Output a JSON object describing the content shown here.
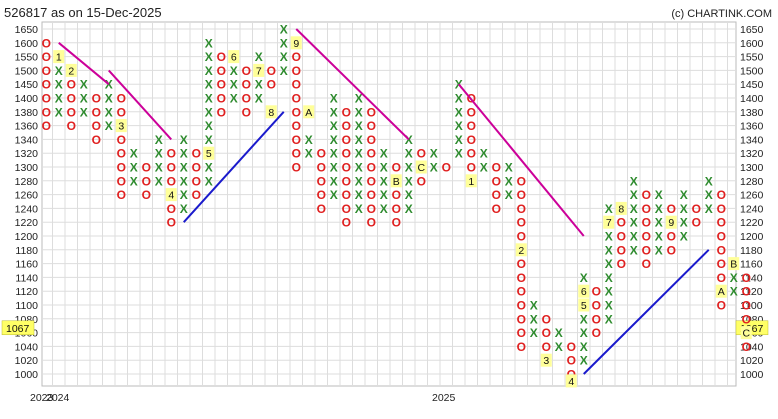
{
  "header": {
    "title": "526817 as on 15-Dec-2025",
    "brand": "(c) CHARTINK.COM"
  },
  "chart_data": {
    "type": "point-and-figure",
    "title": "526817 as on 15-Dec-2025",
    "ylim": [
      1000,
      1650
    ],
    "y_levels": [
      1000,
      1020,
      1040,
      1060,
      1080,
      1100,
      1120,
      1140,
      1160,
      1180,
      1200,
      1220,
      1240,
      1260,
      1280,
      1300,
      1320,
      1340,
      1360,
      1380,
      1400,
      1450,
      1500,
      1550,
      1600,
      1650
    ],
    "x_axis_labels": [
      "2023",
      "2024",
      "2025"
    ],
    "current_price": "1067",
    "grid": true,
    "colors": {
      "x_mark": "#2e8b2e",
      "o_mark": "#e02020",
      "resistance_line": "#cc0099",
      "support_line": "#1a1acc",
      "month_marker_bg": "#ffff99",
      "price_highlight": "#ffff66",
      "grid": "#dddddd"
    },
    "columns": [
      {
        "type": "O",
        "from": 1600,
        "to": 1360
      },
      {
        "type": "X",
        "from": 1380,
        "to": 1550
      },
      {
        "type": "O",
        "from": 1500,
        "to": 1360
      },
      {
        "type": "X",
        "from": 1380,
        "to": 1450
      },
      {
        "type": "O",
        "from": 1400,
        "to": 1340
      },
      {
        "type": "X",
        "from": 1360,
        "to": 1450
      },
      {
        "type": "O",
        "from": 1400,
        "to": 1260
      },
      {
        "type": "X",
        "from": 1280,
        "to": 1320
      },
      {
        "type": "O",
        "from": 1300,
        "to": 1260
      },
      {
        "type": "X",
        "from": 1280,
        "to": 1340
      },
      {
        "type": "O",
        "from": 1320,
        "to": 1220
      },
      {
        "type": "X",
        "from": 1240,
        "to": 1340
      },
      {
        "type": "O",
        "from": 1320,
        "to": 1260
      },
      {
        "type": "X",
        "from": 1280,
        "to": 1600
      },
      {
        "type": "O",
        "from": 1550,
        "to": 1380
      },
      {
        "type": "X",
        "from": 1400,
        "to": 1550
      },
      {
        "type": "O",
        "from": 1500,
        "to": 1380
      },
      {
        "type": "X",
        "from": 1400,
        "to": 1550
      },
      {
        "type": "O",
        "from": 1500,
        "to": 1450
      },
      {
        "type": "X",
        "from": 1500,
        "to": 1650
      },
      {
        "type": "O",
        "from": 1600,
        "to": 1300
      },
      {
        "type": "X",
        "from": 1320,
        "to": 1340
      },
      {
        "type": "O",
        "from": 1320,
        "to": 1240
      },
      {
        "type": "X",
        "from": 1260,
        "to": 1400
      },
      {
        "type": "O",
        "from": 1380,
        "to": 1220
      },
      {
        "type": "X",
        "from": 1240,
        "to": 1400
      },
      {
        "type": "O",
        "from": 1380,
        "to": 1220
      },
      {
        "type": "X",
        "from": 1240,
        "to": 1320
      },
      {
        "type": "O",
        "from": 1300,
        "to": 1220
      },
      {
        "type": "X",
        "from": 1240,
        "to": 1340
      },
      {
        "type": "O",
        "from": 1320,
        "to": 1280
      },
      {
        "type": "X",
        "from": 1300,
        "to": 1320
      },
      {
        "type": "O",
        "from": 1300,
        "to": 1300
      },
      {
        "type": "X",
        "from": 1320,
        "to": 1450
      },
      {
        "type": "O",
        "from": 1400,
        "to": 1280
      },
      {
        "type": "X",
        "from": 1300,
        "to": 1320
      },
      {
        "type": "O",
        "from": 1300,
        "to": 1240
      },
      {
        "type": "X",
        "from": 1260,
        "to": 1300
      },
      {
        "type": "O",
        "from": 1280,
        "to": 1040
      },
      {
        "type": "X",
        "from": 1060,
        "to": 1100
      },
      {
        "type": "O",
        "from": 1080,
        "to": 1020
      },
      {
        "type": "X",
        "from": 1040,
        "to": 1060
      },
      {
        "type": "O",
        "from": 1040,
        "to": 1000
      },
      {
        "type": "X",
        "from": 1020,
        "to": 1140
      },
      {
        "type": "O",
        "from": 1120,
        "to": 1060
      },
      {
        "type": "X",
        "from": 1080,
        "to": 1240
      },
      {
        "type": "O",
        "from": 1220,
        "to": 1160
      },
      {
        "type": "X",
        "from": 1180,
        "to": 1280
      },
      {
        "type": "O",
        "from": 1260,
        "to": 1160
      },
      {
        "type": "X",
        "from": 1180,
        "to": 1260
      },
      {
        "type": "O",
        "from": 1240,
        "to": 1180
      },
      {
        "type": "X",
        "from": 1200,
        "to": 1260
      },
      {
        "type": "O",
        "from": 1240,
        "to": 1220
      },
      {
        "type": "X",
        "from": 1240,
        "to": 1280
      },
      {
        "type": "O",
        "from": 1260,
        "to": 1100
      },
      {
        "type": "X",
        "from": 1120,
        "to": 1160
      },
      {
        "type": "O",
        "from": 1140,
        "to": 1040
      }
    ],
    "month_markers": [
      {
        "label": "1",
        "column": 1,
        "price": 1550
      },
      {
        "label": "2",
        "column": 2,
        "price": 1500
      },
      {
        "label": "3",
        "column": 6,
        "price": 1360
      },
      {
        "label": "4",
        "column": 10,
        "price": 1260
      },
      {
        "label": "5",
        "column": 13,
        "price": 1320
      },
      {
        "label": "6",
        "column": 15,
        "price": 1550
      },
      {
        "label": "7",
        "column": 17,
        "price": 1500
      },
      {
        "label": "8",
        "column": 18,
        "price": 1380
      },
      {
        "label": "9",
        "column": 20,
        "price": 1600
      },
      {
        "label": "A",
        "column": 21,
        "price": 1380
      },
      {
        "label": "B",
        "column": 28,
        "price": 1280
      },
      {
        "label": "C",
        "column": 30,
        "price": 1300
      },
      {
        "label": "1",
        "column": 34,
        "price": 1280
      },
      {
        "label": "2",
        "column": 38,
        "price": 1180
      },
      {
        "label": "3",
        "column": 40,
        "price": 1020
      },
      {
        "label": "4",
        "column": 42,
        "price": 990
      },
      {
        "label": "5",
        "column": 43,
        "price": 1100
      },
      {
        "label": "6",
        "column": 43,
        "price": 1120
      },
      {
        "label": "7",
        "column": 45,
        "price": 1220
      },
      {
        "label": "8",
        "column": 46,
        "price": 1240
      },
      {
        "label": "9",
        "column": 50,
        "price": 1220
      },
      {
        "label": "A",
        "column": 54,
        "price": 1120
      },
      {
        "label": "B",
        "column": 55,
        "price": 1160
      },
      {
        "label": "C",
        "column": 56,
        "price": 1060
      }
    ],
    "trend_lines": [
      {
        "kind": "resistance",
        "from": {
          "column": 1,
          "price": 1600
        },
        "to": {
          "column": 5,
          "price": 1450
        }
      },
      {
        "kind": "resistance",
        "from": {
          "column": 5,
          "price": 1500
        },
        "to": {
          "column": 10,
          "price": 1340
        }
      },
      {
        "kind": "support",
        "from": {
          "column": 11,
          "price": 1220
        },
        "to": {
          "column": 19,
          "price": 1380
        }
      },
      {
        "kind": "resistance",
        "from": {
          "column": 20,
          "price": 1650
        },
        "to": {
          "column": 29,
          "price": 1340
        }
      },
      {
        "kind": "resistance",
        "from": {
          "column": 33,
          "price": 1450
        },
        "to": {
          "column": 43,
          "price": 1200
        }
      },
      {
        "kind": "support",
        "from": {
          "column": 43,
          "price": 1000
        },
        "to": {
          "column": 53,
          "price": 1180
        }
      }
    ]
  }
}
